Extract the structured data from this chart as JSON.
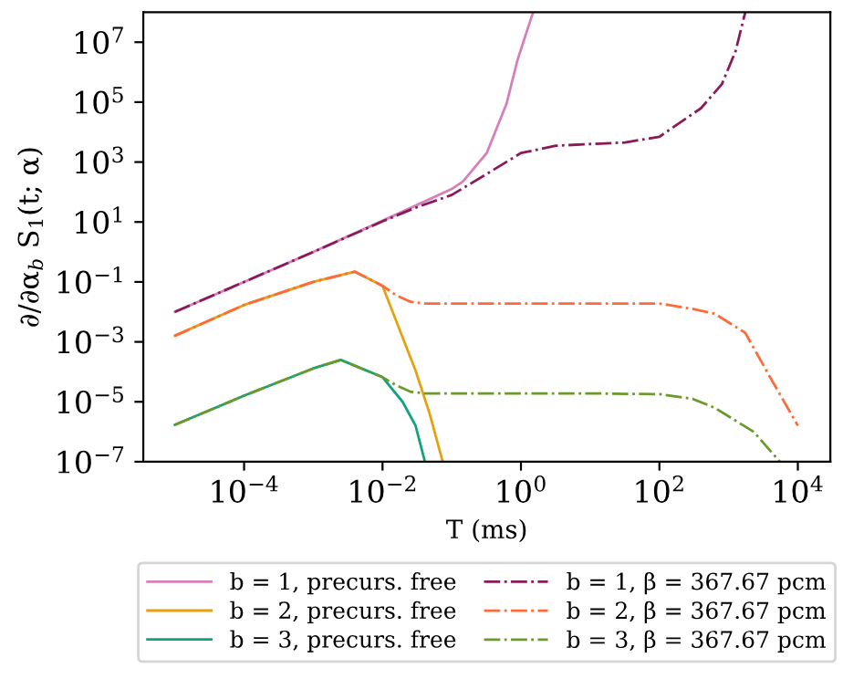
{
  "chart_data": {
    "type": "line",
    "xlabel": "T (ms)",
    "ylabel": "∂/∂α$_{b}$ S$_{1}$(t; α)",
    "log": "xy",
    "grid": false,
    "legend": "bottom",
    "xlim": [
      3.5e-06,
      29500.0
    ],
    "ylim": [
      1e-07,
      100000000.0
    ],
    "xticks": [
      {
        "value": 0.0001,
        "label": "10$^{−4}$"
      },
      {
        "value": 0.01,
        "label": "10$^{−2}$"
      },
      {
        "value": 1,
        "label": "10$^{0}$"
      },
      {
        "value": 100,
        "label": "10$^{2}$"
      },
      {
        "value": 10000,
        "label": "10$^{4}$"
      }
    ],
    "yticks": [
      {
        "value": 1e-07,
        "label": "10$^{−7}$"
      },
      {
        "value": 1e-05,
        "label": "10$^{−5}$"
      },
      {
        "value": 0.001,
        "label": "10$^{−3}$"
      },
      {
        "value": 0.1,
        "label": "10$^{−1}$"
      },
      {
        "value": 10,
        "label": "10$^{1}$"
      },
      {
        "value": 1000,
        "label": "10$^{3}$"
      },
      {
        "value": 100000,
        "label": "10$^{5}$"
      },
      {
        "value": 10000000,
        "label": "10$^{7}$"
      }
    ],
    "series": [
      {
        "name": "b = 1, precurs. free",
        "color": "#d67fbb",
        "line_style": "solid",
        "x": [
          1e-05,
          0.0001,
          0.001,
          0.01,
          0.03,
          0.1,
          0.145,
          0.32,
          0.62,
          0.89,
          1.26,
          1.5
        ],
        "values": [
          0.01,
          0.1,
          1,
          11,
          35,
          126,
          224,
          2000,
          90000.0,
          2500000.0,
          30000000.0,
          100000000.0
        ]
      },
      {
        "name": "b = 2, precurs. free",
        "color": "#e6a010",
        "line_style": "solid",
        "x": [
          1e-05,
          0.0001,
          0.001,
          0.004,
          0.01,
          0.03,
          0.048,
          0.074
        ],
        "values": [
          0.0016,
          0.017,
          0.1,
          0.22,
          0.074,
          0.00011,
          4e-06,
          1e-07
        ]
      },
      {
        "name": "b = 3, precurs. free",
        "color": "#11a37f",
        "line_style": "solid",
        "x": [
          1e-05,
          0.0001,
          0.001,
          0.0025,
          0.01,
          0.0195,
          0.03,
          0.041
        ],
        "values": [
          1.7e-06,
          1.6e-05,
          0.00013,
          0.00025,
          6.6e-05,
          1e-05,
          1.6e-06,
          1e-07
        ]
      },
      {
        "name": "b = 1, β = 367.67 pcm",
        "color": "#8b1a59",
        "line_style": "dashdot",
        "x": [
          1e-05,
          0.0001,
          0.001,
          0.01,
          0.03,
          0.1,
          0.32,
          1,
          3.2,
          10,
          32,
          100,
          400,
          800,
          1260,
          1740
        ],
        "values": [
          0.01,
          0.1,
          1,
          10.5,
          30,
          80,
          400,
          2000,
          3500,
          4000,
          4500,
          7000,
          63000.0,
          400000.0,
          5000000.0,
          100000000.0
        ]
      },
      {
        "name": "b = 2, β = 367.67 pcm",
        "color": "#ff6a3a",
        "line_style": "dashdot",
        "x": [
          1e-05,
          0.0001,
          0.001,
          0.004,
          0.01,
          0.016,
          0.025,
          0.04,
          0.1,
          1,
          10,
          100,
          300,
          630,
          1740,
          3800,
          10000.0
        ],
        "values": [
          0.0016,
          0.017,
          0.1,
          0.22,
          0.074,
          0.035,
          0.022,
          0.019,
          0.019,
          0.019,
          0.019,
          0.019,
          0.0126,
          0.0087,
          0.002,
          7.9e-05,
          1.6e-06
        ]
      },
      {
        "name": "b = 3, β = 367.67 pcm",
        "color": "#6b9a2a",
        "line_style": "dashdot",
        "x": [
          1e-05,
          0.0001,
          0.001,
          0.0025,
          0.01,
          0.016,
          0.025,
          0.04,
          0.1,
          1,
          10,
          100,
          300,
          630,
          2300,
          5500
        ],
        "values": [
          1.7e-06,
          1.6e-05,
          0.00013,
          0.00025,
          6.6e-05,
          3.5e-05,
          2.2e-05,
          1.9e-05,
          1.9e-05,
          1.9e-05,
          1.9e-05,
          1.8e-05,
          1.26e-05,
          6.3e-06,
          1e-06,
          1e-07
        ]
      }
    ]
  }
}
